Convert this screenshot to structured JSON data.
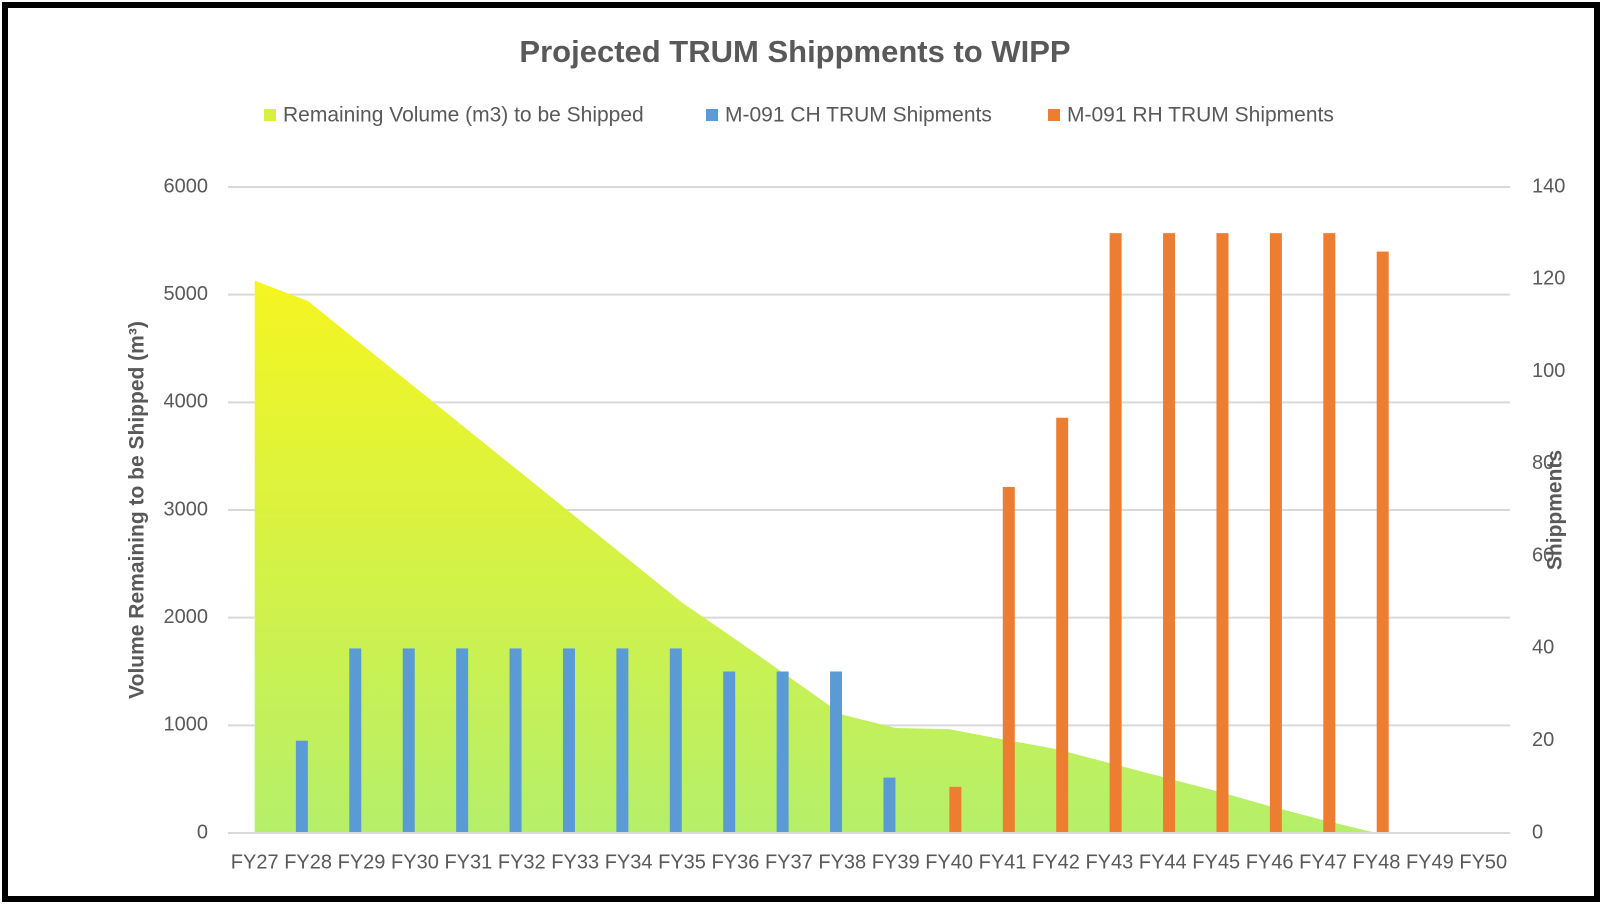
{
  "chart_data": {
    "type": "bar",
    "title": "Projected TRUM Shippments to WIPP",
    "y_label": "Volume Remaining to be Shipped (m³)",
    "y2_label": "Shippments",
    "categories": [
      "FY27",
      "FY28",
      "FY29",
      "FY30",
      "FY31",
      "FY32",
      "FY33",
      "FY34",
      "FY35",
      "FY36",
      "FY37",
      "FY38",
      "FY39",
      "FY40",
      "FY41",
      "FY42",
      "FY43",
      "FY44",
      "FY45",
      "FY46",
      "FY47",
      "FY48",
      "FY49",
      "FY50"
    ],
    "series": [
      {
        "name": "Remaining Volume (m3) to be Shipped",
        "type": "area",
        "color": "#c6ef5a",
        "axis": "y",
        "values": [
          5130,
          4940,
          4540,
          4140,
          3740,
          3340,
          2940,
          2540,
          2140,
          1800,
          1450,
          1100,
          975,
          965,
          870,
          780,
          650,
          520,
          390,
          250,
          120,
          0,
          0,
          0
        ]
      },
      {
        "name": "M-091 CH TRUM Shipments",
        "type": "bar",
        "color": "#5b9bd5",
        "axis": "y2",
        "values": [
          null,
          20,
          40,
          40,
          40,
          40,
          40,
          40,
          40,
          35,
          35,
          35,
          12,
          null,
          null,
          null,
          null,
          null,
          null,
          null,
          null,
          null,
          null,
          null
        ]
      },
      {
        "name": "M-091 RH TRUM Shipments",
        "type": "bar",
        "color": "#ed7d31",
        "axis": "y2",
        "values": [
          null,
          null,
          null,
          null,
          null,
          null,
          null,
          null,
          null,
          null,
          null,
          null,
          null,
          10,
          75,
          90,
          130,
          130,
          130,
          130,
          130,
          126,
          null,
          null
        ]
      }
    ],
    "ylim": [
      0,
      6000
    ],
    "yticks": [
      0,
      1000,
      2000,
      3000,
      4000,
      5000,
      6000
    ],
    "y2lim": [
      0,
      140
    ],
    "y2ticks": [
      0,
      20,
      40,
      60,
      80,
      100,
      120,
      140
    ],
    "grid": true,
    "legend": "top"
  }
}
